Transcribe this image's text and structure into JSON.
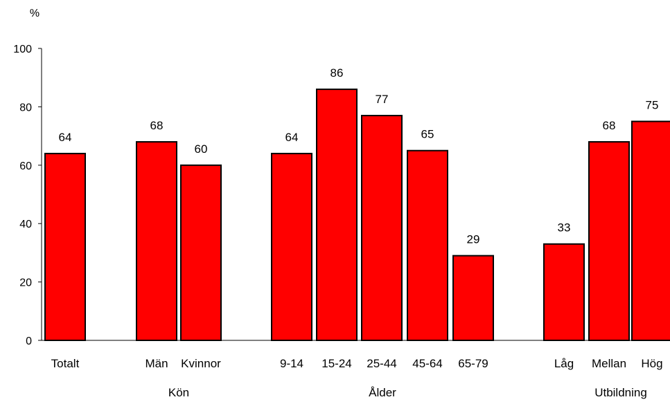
{
  "chart_data": {
    "type": "bar",
    "ylabel": "%",
    "ylim": [
      0,
      100
    ],
    "yticks": [
      0,
      20,
      40,
      60,
      80,
      100
    ],
    "grid": false,
    "bar_color": "#ff0000",
    "categories": [
      "Totalt",
      "Män",
      "Kvinnor",
      "9-14",
      "15-24",
      "25-44",
      "45-64",
      "65-79",
      "Låg",
      "Mellan",
      "Hög"
    ],
    "values": [
      64,
      68,
      60,
      64,
      86,
      77,
      65,
      29,
      33,
      68,
      75
    ],
    "groups": [
      {
        "name": "",
        "categories": [
          "Totalt"
        ]
      },
      {
        "name": "Kön",
        "categories": [
          "Män",
          "Kvinnor"
        ]
      },
      {
        "name": "Ålder",
        "categories": [
          "9-14",
          "15-24",
          "25-44",
          "45-64",
          "65-79"
        ]
      },
      {
        "name": "Utbildning",
        "categories": [
          "Låg",
          "Mellan",
          "Hög"
        ]
      }
    ]
  }
}
